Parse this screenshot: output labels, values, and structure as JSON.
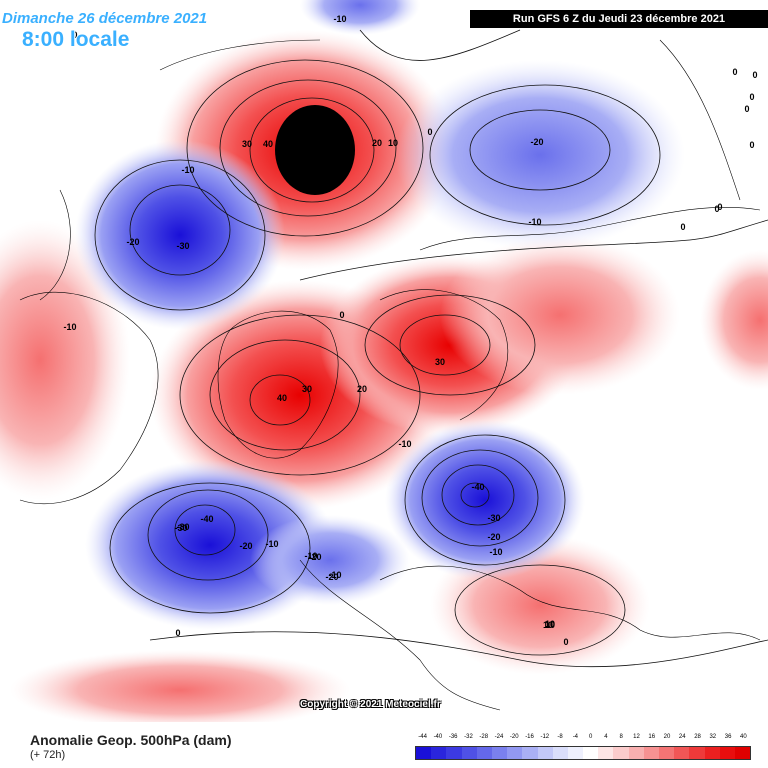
{
  "header": {
    "date": "Dimanche 26 décembre 2021",
    "time": "8:00 locale",
    "run": "Run GFS 6 Z du Jeudi 23 décembre 2021"
  },
  "copyright": "Copyright © 2021 Meteociel.fr",
  "footer": {
    "title": "Anomalie Geop. 500hPa (dam)",
    "subtitle": "(+ 72h)"
  },
  "legend": {
    "ticks": [
      "-44",
      "-40",
      "-36",
      "-32",
      "-28",
      "-24",
      "-20",
      "-16",
      "-12",
      "-8",
      "-4",
      "0",
      "4",
      "8",
      "12",
      "16",
      "20",
      "24",
      "28",
      "32",
      "36",
      "40"
    ],
    "colors": [
      "#1a10d8",
      "#2a25dd",
      "#3c3ae2",
      "#4f51e6",
      "#6468ea",
      "#7a80ee",
      "#9298f2",
      "#aab0f5",
      "#c3c8f8",
      "#dadefb",
      "#eef0fd",
      "#ffffff",
      "#fde6e6",
      "#fbcccc",
      "#f9b0b0",
      "#f79292",
      "#f47474",
      "#f15656",
      "#ee3a3a",
      "#eb2020",
      "#e80e0e",
      "#e00000"
    ]
  },
  "contour_labels": [
    {
      "text": "-10"
    },
    {
      "text": "-20"
    },
    {
      "text": "-30"
    },
    {
      "text": "-10"
    },
    {
      "text": "-20"
    },
    {
      "text": "-10"
    },
    {
      "text": "-20"
    },
    {
      "text": "-30"
    },
    {
      "text": "-10"
    },
    {
      "text": "30"
    },
    {
      "text": "40"
    },
    {
      "text": "20"
    },
    {
      "text": "10"
    },
    {
      "text": "0"
    },
    {
      "text": "0"
    },
    {
      "text": "0"
    },
    {
      "text": "0"
    },
    {
      "text": "0"
    },
    {
      "text": "0"
    },
    {
      "text": "0"
    },
    {
      "text": "0"
    },
    {
      "text": "0"
    },
    {
      "text": "0"
    },
    {
      "text": "-20"
    },
    {
      "text": "30"
    },
    {
      "text": "40"
    },
    {
      "text": "30"
    },
    {
      "text": "20"
    },
    {
      "text": "-10"
    },
    {
      "text": "-40"
    },
    {
      "text": "-30"
    },
    {
      "text": "-20"
    },
    {
      "text": "-10"
    },
    {
      "text": "-30"
    },
    {
      "text": "-40"
    },
    {
      "text": "-20"
    },
    {
      "text": "-10"
    },
    {
      "text": "-10"
    },
    {
      "text": "-10"
    },
    {
      "text": "10"
    },
    {
      "text": "0"
    },
    {
      "text": "10"
    },
    {
      "text": "0"
    },
    {
      "text": "0"
    },
    {
      "text": "10"
    },
    {
      "text": "0"
    }
  ],
  "anomalies": [
    {
      "name": "pacific-ridge",
      "value": 48
    },
    {
      "name": "greenland-high",
      "value": 40
    },
    {
      "name": "atlantic-ridge",
      "value": 30
    },
    {
      "name": "europe-low",
      "value": -42
    },
    {
      "name": "pacific-low",
      "value": -42
    },
    {
      "name": "canada-low",
      "value": -32
    },
    {
      "name": "siberia-low",
      "value": -22
    },
    {
      "name": "arabia-ridge",
      "value": 12
    },
    {
      "name": "asia-ridge",
      "value": 22
    }
  ]
}
